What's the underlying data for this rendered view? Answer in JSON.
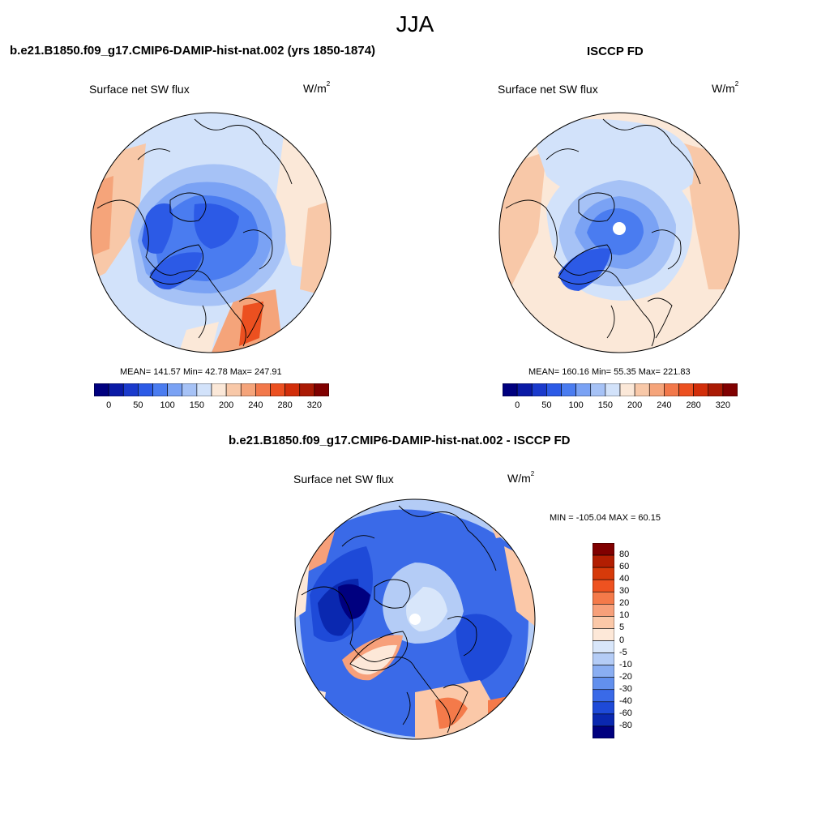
{
  "figure": {
    "season": "JJA"
  },
  "panels": [
    {
      "title": "b.e21.B1850.f09_g17.CMIP6-DAMIP-hist-nat.002 (yrs 1850-1874)",
      "field": "Surface net SW flux",
      "units_base": "W/m",
      "units_exp": "2",
      "stats": "MEAN= 141.57  Min=  42.78  Max= 247.91"
    },
    {
      "title": "ISCCP FD",
      "field": "Surface net SW flux",
      "units_base": "W/m",
      "units_exp": "2",
      "stats": "MEAN= 160.16  Min=  55.35  Max= 221.83"
    },
    {
      "title": "b.e21.B1850.f09_g17.CMIP6-DAMIP-hist-nat.002 - ISCCP FD",
      "field": "Surface net SW flux",
      "units_base": "W/m",
      "units_exp": "2",
      "stats": "MIN = -105.04 MAX =  60.15"
    }
  ],
  "colorbar_abs": {
    "colors": [
      "#00007f",
      "#0a1aa6",
      "#1a3acc",
      "#2c5ae6",
      "#4a7cf0",
      "#7aa2f4",
      "#a6c2f6",
      "#d2e2fa",
      "#fbe8d8",
      "#f8c8a8",
      "#f5a47a",
      "#f2784a",
      "#ec5020",
      "#d22e0a",
      "#aa1a04",
      "#800000"
    ],
    "labels": [
      "0",
      "50",
      "100",
      "150",
      "200",
      "240",
      "280",
      "320"
    ]
  },
  "colorbar_diff": {
    "colors": [
      "#800000",
      "#b21e02",
      "#d63a0a",
      "#ee5220",
      "#f47a4a",
      "#f7a07a",
      "#fbc8a8",
      "#fde8d8",
      "#d8e6fa",
      "#b4ccf6",
      "#8aaef2",
      "#6290ee",
      "#3a6ae8",
      "#1e4ad8",
      "#0a28b0",
      "#00007f"
    ],
    "labels": [
      "80",
      "60",
      "40",
      "30",
      "20",
      "10",
      "5",
      "0",
      "-5",
      "-10",
      "-20",
      "-30",
      "-40",
      "-60",
      "-80"
    ]
  }
}
